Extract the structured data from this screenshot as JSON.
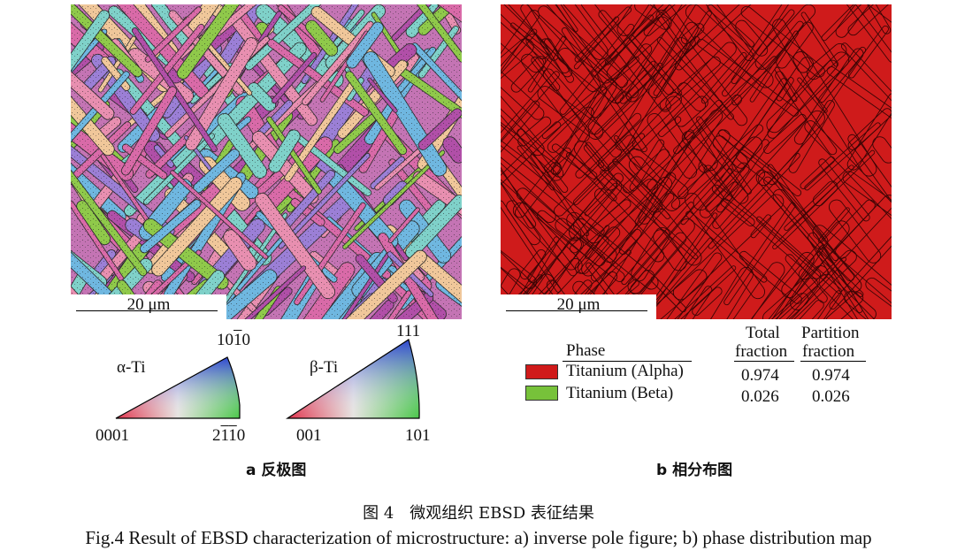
{
  "panel_a": {
    "scale_bar": "20 μm",
    "ipf_alpha": {
      "phase_label": "α-Ti",
      "corner_top": "1010",
      "corner_left": "0001",
      "corner_right": "2110"
    },
    "ipf_beta": {
      "phase_label": "β-Ti",
      "corner_top": "111",
      "corner_left": "001",
      "corner_right": "101"
    },
    "subcaption": "a 反极图"
  },
  "panel_b": {
    "scale_bar": "20 μm",
    "legend": {
      "header_phase": "Phase",
      "header_total_line1": "Total",
      "header_total_line2": "fraction",
      "header_partition_line1": "Partition",
      "header_partition_line2": "fraction",
      "rows": [
        {
          "name": "Titanium (Alpha)",
          "color": "#d01a1a",
          "total": "0.974",
          "partition": "0.974"
        },
        {
          "name": "Titanium (Beta)",
          "color": "#77c23a",
          "total": "0.026",
          "partition": "0.026"
        }
      ]
    },
    "subcaption": "b 相分布图"
  },
  "caption": {
    "chinese": "图 4　微观组织 EBSD 表征结果",
    "english": "Fig.4 Result of EBSD characterization of microstructure: a) inverse pole figure; b) phase distribution map"
  },
  "colors": {
    "alpha_red": "#d01a1a",
    "beta_green": "#77c23a",
    "ipf_palette": [
      "#d96aa8",
      "#b14fa8",
      "#7fd1c9",
      "#8fc94a",
      "#f0c79a",
      "#9b7fd6",
      "#e88fb0",
      "#6fb7e0"
    ]
  }
}
